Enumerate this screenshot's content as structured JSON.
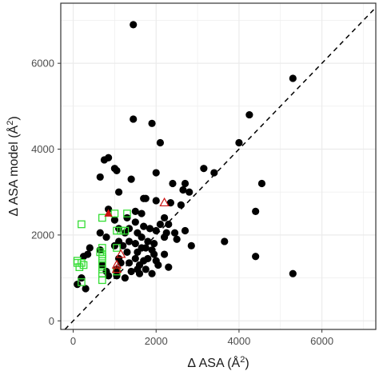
{
  "chart_data": {
    "type": "scatter",
    "title": "",
    "xlabel": "Δ ASA (Å",
    "xlabel_sup": "2",
    "xlabel_end": ")",
    "ylabel": "Δ ASA model (Å",
    "ylabel_sup": "2",
    "ylabel_end": ")",
    "xlim": [
      -300,
      7300
    ],
    "ylim": [
      -200,
      7400
    ],
    "xticks": [
      0,
      2000,
      4000,
      6000
    ],
    "yticks": [
      0,
      2000,
      4000,
      6000
    ],
    "grid": true,
    "reference_line": {
      "style": "dashed",
      "slope": 1,
      "intercept": 0,
      "color": "#000000"
    },
    "colors": {
      "circle": "#000000",
      "square": "#33dd33",
      "triangle": "#cc1111",
      "grid": "#ebebeb",
      "panel_border": "#333333"
    },
    "series": [
      {
        "marker": "filled-circle",
        "points": [
          [
            1450,
            6900
          ],
          [
            5300,
            5650
          ],
          [
            4250,
            4800
          ],
          [
            1450,
            4700
          ],
          [
            1900,
            4600
          ],
          [
            2100,
            4150
          ],
          [
            4000,
            4150
          ],
          [
            750,
            3750
          ],
          [
            850,
            3800
          ],
          [
            3150,
            3550
          ],
          [
            3400,
            3450
          ],
          [
            1000,
            3550
          ],
          [
            1050,
            3500
          ],
          [
            650,
            3350
          ],
          [
            1400,
            3300
          ],
          [
            2000,
            3450
          ],
          [
            2400,
            3200
          ],
          [
            2700,
            3200
          ],
          [
            4550,
            3200
          ],
          [
            2650,
            3050
          ],
          [
            1100,
            3000
          ],
          [
            2800,
            3000
          ],
          [
            1700,
            2850
          ],
          [
            1750,
            2850
          ],
          [
            2000,
            2800
          ],
          [
            2350,
            2750
          ],
          [
            2600,
            2700
          ],
          [
            850,
            2600
          ],
          [
            4400,
            2550
          ],
          [
            1500,
            2550
          ],
          [
            1650,
            2500
          ],
          [
            1300,
            2400
          ],
          [
            2200,
            2400
          ],
          [
            1000,
            2350
          ],
          [
            1500,
            2300
          ],
          [
            2100,
            2250
          ],
          [
            2300,
            2250
          ],
          [
            1700,
            2200
          ],
          [
            1100,
            2150
          ],
          [
            1350,
            2150
          ],
          [
            1850,
            2150
          ],
          [
            2000,
            2100
          ],
          [
            2700,
            2100
          ],
          [
            650,
            2050
          ],
          [
            1250,
            2050
          ],
          [
            1550,
            2050
          ],
          [
            2250,
            2050
          ],
          [
            2450,
            2050
          ],
          [
            800,
            1950
          ],
          [
            1650,
            1950
          ],
          [
            2200,
            1950
          ],
          [
            2500,
            1900
          ],
          [
            1100,
            1850
          ],
          [
            1350,
            1850
          ],
          [
            1800,
            1850
          ],
          [
            3650,
            1850
          ],
          [
            1500,
            1800
          ],
          [
            1950,
            1800
          ],
          [
            2850,
            1750
          ],
          [
            1000,
            1750
          ],
          [
            1200,
            1750
          ],
          [
            1650,
            1700
          ],
          [
            1750,
            1700
          ],
          [
            400,
            1700
          ],
          [
            1900,
            1650
          ],
          [
            650,
            1650
          ],
          [
            1300,
            1600
          ],
          [
            1550,
            1600
          ],
          [
            1950,
            1550
          ],
          [
            2200,
            1550
          ],
          [
            250,
            1500
          ],
          [
            350,
            1550
          ],
          [
            1100,
            1450
          ],
          [
            1500,
            1450
          ],
          [
            1800,
            1450
          ],
          [
            4400,
            1500
          ],
          [
            1700,
            1400
          ],
          [
            2000,
            1400
          ],
          [
            1150,
            1350
          ],
          [
            1350,
            1350
          ],
          [
            1600,
            1300
          ],
          [
            2050,
            1300
          ],
          [
            700,
            1300
          ],
          [
            2300,
            1250
          ],
          [
            1550,
            1200
          ],
          [
            1750,
            1200
          ],
          [
            1050,
            1200
          ],
          [
            800,
            1150
          ],
          [
            1400,
            1150
          ],
          [
            1600,
            1100
          ],
          [
            1900,
            1100
          ],
          [
            5300,
            1100
          ],
          [
            850,
            1050
          ],
          [
            1050,
            1050
          ],
          [
            200,
            1000
          ],
          [
            1250,
            1000
          ],
          [
            100,
            850
          ],
          [
            300,
            750
          ]
        ]
      },
      {
        "marker": "open-square",
        "points": [
          [
            200,
            2250
          ],
          [
            700,
            2400
          ],
          [
            1000,
            2500
          ],
          [
            1300,
            2500
          ],
          [
            1050,
            2100
          ],
          [
            1150,
            2100
          ],
          [
            1250,
            2100
          ],
          [
            700,
            1700
          ],
          [
            1050,
            1700
          ],
          [
            650,
            1600
          ],
          [
            700,
            1550
          ],
          [
            700,
            1500
          ],
          [
            700,
            1450
          ],
          [
            100,
            1400
          ],
          [
            100,
            1350
          ],
          [
            200,
            1350
          ],
          [
            250,
            1300
          ],
          [
            700,
            1300
          ],
          [
            150,
            1250
          ],
          [
            700,
            1200
          ],
          [
            700,
            1100
          ],
          [
            1050,
            1150
          ],
          [
            700,
            950
          ],
          [
            200,
            900
          ]
        ]
      },
      {
        "marker": "filled-triangle",
        "points": [
          [
            850,
            2500
          ]
        ]
      },
      {
        "marker": "open-triangle",
        "points": [
          [
            2200,
            2750
          ],
          [
            1050,
            1300
          ],
          [
            1150,
            1550
          ],
          [
            1050,
            1200
          ]
        ]
      }
    ]
  }
}
